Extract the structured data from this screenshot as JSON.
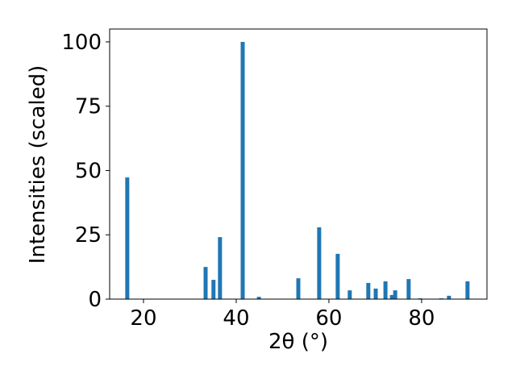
{
  "chart_data": {
    "type": "bar",
    "x_label": "2θ (°)",
    "y_label": "Intensities (scaled)",
    "x": [
      16.5,
      33.4,
      35.1,
      36.5,
      41.4,
      44.9,
      53.4,
      57.9,
      61.9,
      64.5,
      68.5,
      70.1,
      72.2,
      73.6,
      74.3,
      77.2,
      79.7,
      84.2,
      85.9,
      89.9
    ],
    "values": [
      47.3,
      12.5,
      7.5,
      24.1,
      100,
      0.9,
      8.1,
      27.9,
      17.6,
      3.4,
      6.3,
      4.1,
      6.9,
      1.6,
      3.4,
      7.8,
      0.3,
      0.3,
      1.3,
      6.9
    ],
    "color": "#1f77b4",
    "xlim": [
      12.7,
      94.1
    ],
    "ylim": [
      0,
      105
    ],
    "xticks": [
      20,
      40,
      60,
      80
    ],
    "yticks": [
      0,
      25,
      50,
      75,
      100
    ]
  }
}
